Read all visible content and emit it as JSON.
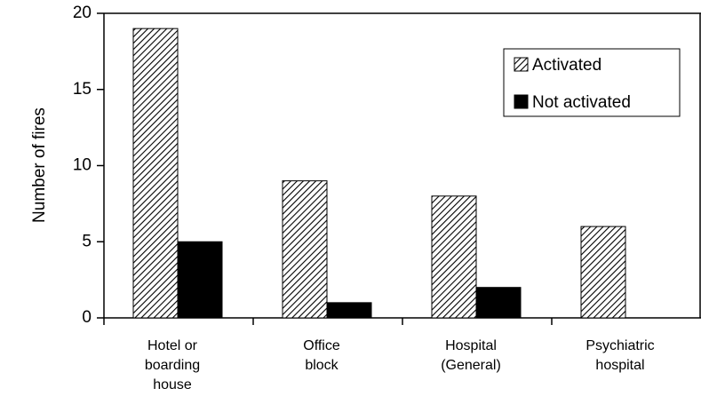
{
  "chart_data": {
    "type": "bar",
    "y_axis_label": "Number of fires",
    "categories": [
      "Hotel or\nboarding\nhouse",
      "Office\nblock",
      "Hospital\n(General)",
      "Psychiatric\nhospital"
    ],
    "series": [
      {
        "name": "Activated",
        "color": "#000000",
        "hatch": true,
        "values": [
          19,
          9,
          8,
          6
        ]
      },
      {
        "name": "Not activated",
        "color": "#000000",
        "hatch": false,
        "values": [
          5,
          1,
          2,
          0
        ]
      }
    ],
    "ylim": [
      0,
      20
    ],
    "yticks": [
      0,
      5,
      10,
      15,
      20
    ],
    "grid": false,
    "legend": "upper right"
  }
}
